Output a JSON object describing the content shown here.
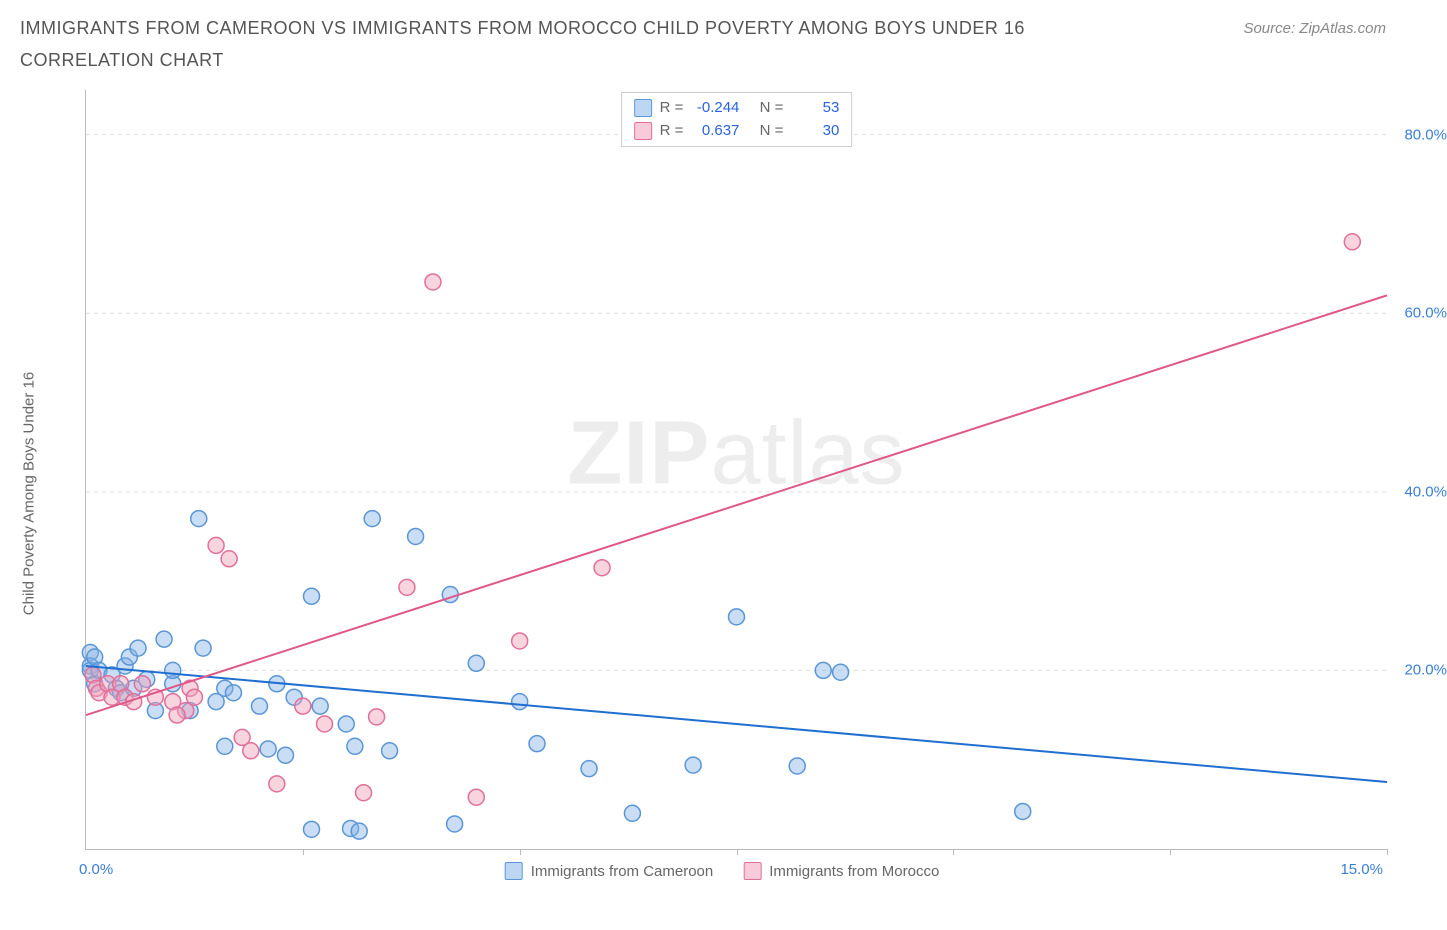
{
  "header": {
    "title": "IMMIGRANTS FROM CAMEROON VS IMMIGRANTS FROM MOROCCO CHILD POVERTY AMONG BOYS UNDER 16 CORRELATION CHART",
    "source": "Source: ZipAtlas.com"
  },
  "watermark": {
    "bold": "ZIP",
    "rest": "atlas"
  },
  "chart": {
    "type": "scatter",
    "background_color": "#ffffff",
    "grid_color": "#dddddd",
    "axis_color": "#bbbbbb",
    "tick_font_color": "#3a7fd5",
    "tick_fontsize": 15,
    "label_font_color": "#666666",
    "label_fontsize": 15,
    "y_axis_label": "Child Poverty Among Boys Under 16",
    "xlim": [
      0,
      15
    ],
    "ylim": [
      0,
      85
    ],
    "x_ticks": [
      0,
      2.5,
      5,
      7.5,
      10,
      12.5,
      15
    ],
    "x_tick_labels_shown": {
      "min": "0.0%",
      "max": "15.0%"
    },
    "y_ticks": [
      {
        "v": 20,
        "label": "20.0%"
      },
      {
        "v": 40,
        "label": "40.0%"
      },
      {
        "v": 60,
        "label": "60.0%"
      },
      {
        "v": 80,
        "label": "80.0%"
      }
    ],
    "marker_radius": 8,
    "marker_stroke_width": 1.5,
    "line_width": 2,
    "series": [
      {
        "id": "cameroon",
        "name": "Immigrants from Cameroon",
        "fill": "rgba(135,180,230,0.45)",
        "stroke": "#5a96d6",
        "line_color": "#1f6fd0",
        "R_label": "R =",
        "R": "-0.244",
        "N_label": "N =",
        "N": "53",
        "trend": {
          "x1": 0,
          "y1": 20.5,
          "x2": 15,
          "y2": 7.5
        },
        "points": [
          [
            0.05,
            22
          ],
          [
            0.05,
            20.5
          ],
          [
            0.05,
            20
          ],
          [
            0.1,
            21.5
          ],
          [
            0.1,
            18.5
          ],
          [
            0.15,
            20
          ],
          [
            0.3,
            19.5
          ],
          [
            0.35,
            18
          ],
          [
            0.4,
            17.5
          ],
          [
            0.45,
            20.5
          ],
          [
            0.5,
            21.5
          ],
          [
            0.55,
            18
          ],
          [
            0.6,
            22.5
          ],
          [
            0.7,
            19
          ],
          [
            0.9,
            23.5
          ],
          [
            1.0,
            18.5
          ],
          [
            1.0,
            20
          ],
          [
            1.3,
            37
          ],
          [
            1.35,
            22.5
          ],
          [
            1.5,
            16.5
          ],
          [
            1.6,
            18
          ],
          [
            1.6,
            11.5
          ],
          [
            1.7,
            17.5
          ],
          [
            2.0,
            16
          ],
          [
            2.1,
            11.2
          ],
          [
            2.2,
            18.5
          ],
          [
            2.3,
            10.5
          ],
          [
            2.4,
            17
          ],
          [
            2.6,
            28.3
          ],
          [
            2.6,
            2.2
          ],
          [
            2.7,
            16
          ],
          [
            3.0,
            14
          ],
          [
            3.05,
            2.3
          ],
          [
            3.1,
            11.5
          ],
          [
            3.15,
            2.0
          ],
          [
            3.3,
            37
          ],
          [
            3.5,
            11
          ],
          [
            3.8,
            35
          ],
          [
            4.2,
            28.5
          ],
          [
            4.25,
            2.8
          ],
          [
            4.5,
            20.8
          ],
          [
            5.0,
            16.5
          ],
          [
            5.2,
            11.8
          ],
          [
            5.8,
            9.0
          ],
          [
            6.3,
            4.0
          ],
          [
            7.0,
            9.4
          ],
          [
            7.5,
            26
          ],
          [
            8.2,
            9.3
          ],
          [
            8.5,
            20
          ],
          [
            8.7,
            19.8
          ],
          [
            10.8,
            4.2
          ],
          [
            0.8,
            15.5
          ],
          [
            1.2,
            15.5
          ]
        ]
      },
      {
        "id": "morocco",
        "name": "Immigrants from Morocco",
        "fill": "rgba(240,160,185,0.45)",
        "stroke": "#e16f9a",
        "line_color": "#e0588a",
        "R_label": "R =",
        "R": "0.637",
        "N_label": "N =",
        "N": "30",
        "trend": {
          "x1": 0,
          "y1": 15,
          "x2": 15,
          "y2": 62
        },
        "points": [
          [
            0.08,
            19.5
          ],
          [
            0.12,
            18
          ],
          [
            0.15,
            17.5
          ],
          [
            0.25,
            18.5
          ],
          [
            0.3,
            17
          ],
          [
            0.4,
            18.5
          ],
          [
            0.45,
            17
          ],
          [
            0.55,
            16.5
          ],
          [
            0.65,
            18.5
          ],
          [
            0.8,
            17
          ],
          [
            1.0,
            16.5
          ],
          [
            1.15,
            15.5
          ],
          [
            1.2,
            18
          ],
          [
            1.25,
            17
          ],
          [
            1.5,
            34
          ],
          [
            1.65,
            32.5
          ],
          [
            1.8,
            12.5
          ],
          [
            1.9,
            11
          ],
          [
            2.2,
            7.3
          ],
          [
            2.5,
            16
          ],
          [
            2.75,
            14
          ],
          [
            3.2,
            6.3
          ],
          [
            3.35,
            14.8
          ],
          [
            3.7,
            29.3
          ],
          [
            4.0,
            63.5
          ],
          [
            4.5,
            5.8
          ],
          [
            5.0,
            23.3
          ],
          [
            5.95,
            31.5
          ],
          [
            14.6,
            68
          ],
          [
            1.05,
            15
          ]
        ]
      }
    ],
    "bottom_legend": [
      {
        "swatch_fill": "rgba(135,180,230,0.55)",
        "swatch_stroke": "#5a96d6",
        "label": "Immigrants from Cameroon"
      },
      {
        "swatch_fill": "rgba(240,160,185,0.55)",
        "swatch_stroke": "#e16f9a",
        "label": "Immigrants from Morocco"
      }
    ]
  }
}
